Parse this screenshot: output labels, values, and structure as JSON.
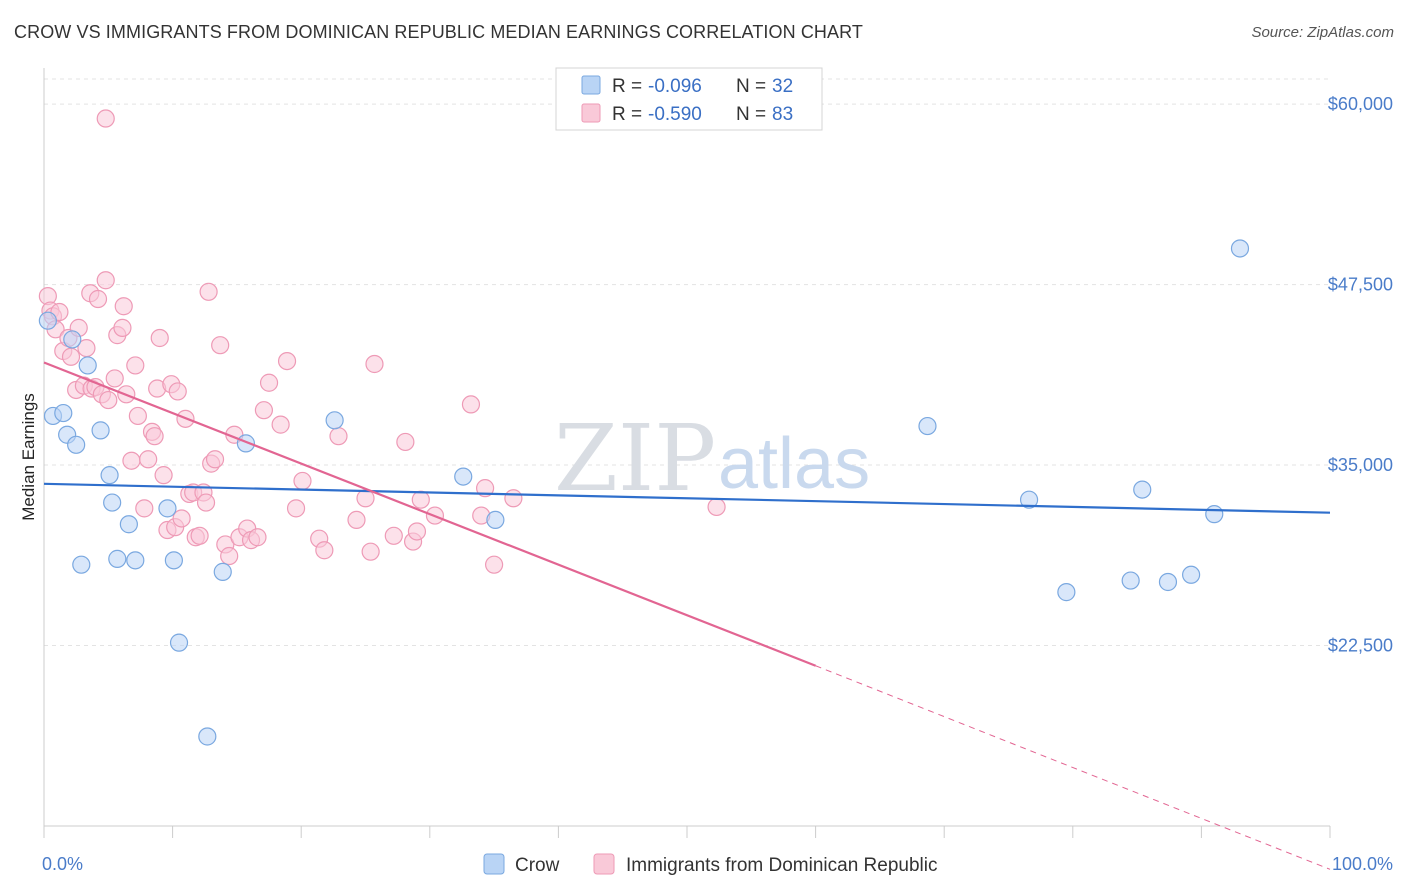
{
  "title": "CROW VS IMMIGRANTS FROM DOMINICAN REPUBLIC MEDIAN EARNINGS CORRELATION CHART",
  "source": "Source: ZipAtlas.com",
  "watermark": {
    "zip": "ZIP",
    "atlas": "atlas"
  },
  "legend": {
    "rows": [
      {
        "r_label": "R = ",
        "r_value": "-0.096",
        "n_label": "N = ",
        "n_value": "32"
      },
      {
        "r_label": "R = ",
        "r_value": "-0.590",
        "n_label": "N = ",
        "n_value": "83"
      }
    ]
  },
  "colors": {
    "crow_fill": "#b9d4f5",
    "crow_stroke": "#7aa8e0",
    "crow_line": "#2f6fcc",
    "dr_fill": "#f9c9d8",
    "dr_stroke": "#ee9ab6",
    "dr_line": "#e26592"
  },
  "chart_data": {
    "type": "scatter",
    "xlabel": "",
    "ylabel": "Median Earnings",
    "xlim": [
      0,
      100
    ],
    "ylim": [
      10000,
      62500
    ],
    "x_tick_labels": [
      "0.0%",
      "100.0%"
    ],
    "y_ticks": [
      22500,
      35000,
      47500,
      60000
    ],
    "y_tick_labels": [
      "$22,500",
      "$35,000",
      "$47,500",
      "$60,000"
    ],
    "legend_position": "top-center",
    "series": [
      {
        "name": "Crow",
        "trend": {
          "x": [
            0,
            100
          ],
          "y": [
            33700,
            31700
          ],
          "dashed_from": null
        },
        "points": [
          [
            0.3,
            45000
          ],
          [
            0.7,
            38400
          ],
          [
            1.5,
            38600
          ],
          [
            1.8,
            37100
          ],
          [
            2.2,
            43700
          ],
          [
            2.5,
            36400
          ],
          [
            2.9,
            28100
          ],
          [
            3.4,
            41900
          ],
          [
            4.4,
            37400
          ],
          [
            5.1,
            34300
          ],
          [
            5.3,
            32400
          ],
          [
            5.7,
            28500
          ],
          [
            6.6,
            30900
          ],
          [
            7.1,
            28400
          ],
          [
            9.6,
            32000
          ],
          [
            10.1,
            28400
          ],
          [
            10.5,
            22700
          ],
          [
            12.7,
            16200
          ],
          [
            13.9,
            27600
          ],
          [
            15.7,
            36500
          ],
          [
            22.6,
            38100
          ],
          [
            32.6,
            34200
          ],
          [
            35.1,
            31200
          ],
          [
            68.7,
            37700
          ],
          [
            76.6,
            32600
          ],
          [
            79.5,
            26200
          ],
          [
            84.5,
            27000
          ],
          [
            85.4,
            33300
          ],
          [
            87.4,
            26900
          ],
          [
            89.2,
            27400
          ],
          [
            91.0,
            31600
          ],
          [
            93.0,
            50000
          ]
        ]
      },
      {
        "name": "Immigrants from Dominican Republic",
        "trend": {
          "x": [
            0,
            60,
            100
          ],
          "y": [
            42100,
            21100,
            7000
          ],
          "dashed_from": 60
        },
        "points": [
          [
            0.3,
            46700
          ],
          [
            0.5,
            45700
          ],
          [
            0.7,
            45300
          ],
          [
            0.9,
            44400
          ],
          [
            1.2,
            45600
          ],
          [
            1.5,
            42900
          ],
          [
            1.9,
            43800
          ],
          [
            2.1,
            42500
          ],
          [
            2.5,
            40200
          ],
          [
            2.7,
            44500
          ],
          [
            3.1,
            40500
          ],
          [
            3.3,
            43100
          ],
          [
            3.6,
            46900
          ],
          [
            3.7,
            40300
          ],
          [
            4.0,
            40400
          ],
          [
            4.2,
            46500
          ],
          [
            4.5,
            39900
          ],
          [
            4.8,
            47800
          ],
          [
            5.0,
            39500
          ],
          [
            5.5,
            41000
          ],
          [
            5.7,
            44000
          ],
          [
            6.1,
            44500
          ],
          [
            6.2,
            46000
          ],
          [
            6.4,
            39900
          ],
          [
            6.8,
            35300
          ],
          [
            7.1,
            41900
          ],
          [
            7.3,
            38400
          ],
          [
            7.8,
            32000
          ],
          [
            8.1,
            35400
          ],
          [
            8.4,
            37300
          ],
          [
            8.6,
            37000
          ],
          [
            8.8,
            40300
          ],
          [
            9.0,
            43800
          ],
          [
            9.3,
            34300
          ],
          [
            9.6,
            30500
          ],
          [
            9.9,
            40600
          ],
          [
            10.2,
            30700
          ],
          [
            10.4,
            40100
          ],
          [
            10.7,
            31300
          ],
          [
            11.0,
            38200
          ],
          [
            11.3,
            33000
          ],
          [
            11.6,
            33100
          ],
          [
            11.8,
            30000
          ],
          [
            12.1,
            30100
          ],
          [
            12.4,
            33100
          ],
          [
            12.6,
            32400
          ],
          [
            12.8,
            47000
          ],
          [
            13.0,
            35100
          ],
          [
            13.3,
            35400
          ],
          [
            13.7,
            43300
          ],
          [
            14.1,
            29500
          ],
          [
            14.4,
            28700
          ],
          [
            14.8,
            37100
          ],
          [
            15.2,
            30000
          ],
          [
            15.8,
            30600
          ],
          [
            16.1,
            29800
          ],
          [
            16.6,
            30000
          ],
          [
            17.1,
            38800
          ],
          [
            17.5,
            40700
          ],
          [
            18.4,
            37800
          ],
          [
            18.9,
            42200
          ],
          [
            19.6,
            32000
          ],
          [
            20.1,
            33900
          ],
          [
            21.4,
            29900
          ],
          [
            21.8,
            29100
          ],
          [
            22.9,
            37000
          ],
          [
            24.3,
            31200
          ],
          [
            25.0,
            32700
          ],
          [
            25.4,
            29000
          ],
          [
            25.7,
            42000
          ],
          [
            27.2,
            30100
          ],
          [
            28.1,
            36600
          ],
          [
            28.7,
            29700
          ],
          [
            29.0,
            30400
          ],
          [
            29.3,
            32600
          ],
          [
            30.4,
            31500
          ],
          [
            33.2,
            39200
          ],
          [
            34.0,
            31500
          ],
          [
            34.3,
            33400
          ],
          [
            35.0,
            28100
          ],
          [
            36.5,
            32700
          ],
          [
            52.3,
            32100
          ],
          [
            4.8,
            59000
          ]
        ]
      }
    ]
  }
}
